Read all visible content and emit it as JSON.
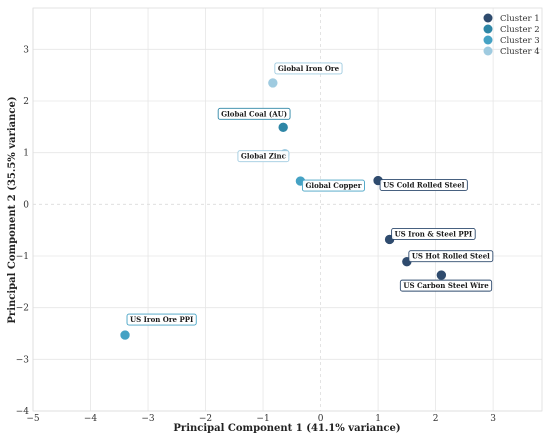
{
  "chart_data": {
    "type": "scatter",
    "title": "",
    "xlabel": "Principal Component 1 (41.1% variance)",
    "ylabel": "Principal Component 2 (35.5% variance)",
    "xlim": [
      -5,
      3.85
    ],
    "ylim": [
      -4,
      3.8
    ],
    "xticks": [
      -5,
      -4,
      -3,
      -2,
      -1,
      0,
      1,
      2,
      3
    ],
    "yticks": [
      -4,
      -3,
      -2,
      -1,
      0,
      1,
      2,
      3
    ],
    "grid": true,
    "legend_position": "top-right",
    "series": [
      {
        "name": "Cluster 1",
        "color": "#2f4b6e",
        "points": [
          {
            "x": 1.0,
            "y": 0.46,
            "label": "US Cold Rolled Steel"
          },
          {
            "x": 1.2,
            "y": -0.68,
            "label": "US Iron & Steel PPI"
          },
          {
            "x": 1.5,
            "y": -1.11,
            "label": "US Hot Rolled Steel"
          },
          {
            "x": 2.1,
            "y": -1.37,
            "label": "US Carbon Steel Wire"
          }
        ]
      },
      {
        "name": "Cluster 2",
        "color": "#2e86a6",
        "points": [
          {
            "x": -0.65,
            "y": 1.49,
            "label": "Global Coal (AU)"
          }
        ]
      },
      {
        "name": "Cluster 3",
        "color": "#45a2c4",
        "points": [
          {
            "x": -0.35,
            "y": 0.45,
            "label": "Global Copper"
          },
          {
            "x": -3.4,
            "y": -2.53,
            "label": "US Iron Ore PPI"
          }
        ]
      },
      {
        "name": "Cluster 4",
        "color": "#9fcbe0",
        "points": [
          {
            "x": -0.83,
            "y": 2.35,
            "label": "Global Iron Ore"
          },
          {
            "x": -0.62,
            "y": 0.98,
            "label": "Global Zinc"
          }
        ]
      }
    ]
  }
}
